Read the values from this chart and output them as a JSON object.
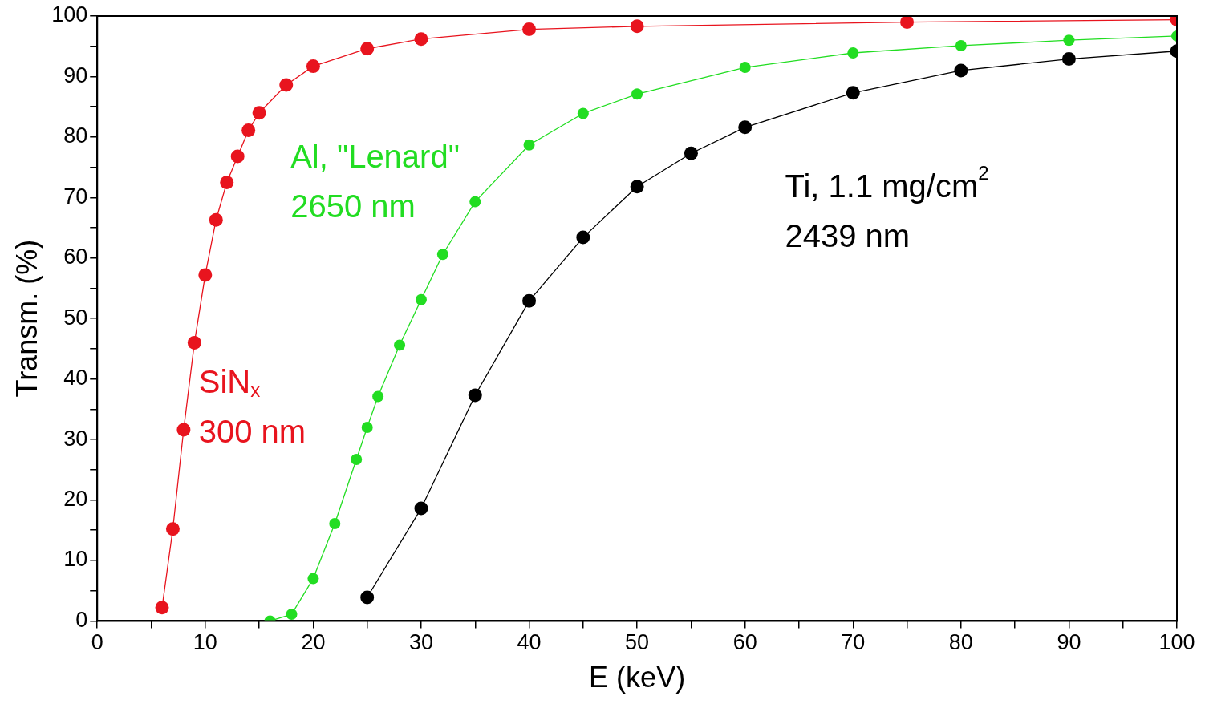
{
  "chart_data": {
    "type": "line",
    "xlabel": "E (keV)",
    "ylabel": "Transm. (%)",
    "xlim": [
      0,
      100
    ],
    "ylim": [
      0,
      100
    ],
    "xticks": [
      0,
      {
        "value": 5,
        "label": null
      },
      10,
      {
        "value": 15,
        "label": null
      },
      20,
      {
        "value": 25,
        "label": null
      },
      30,
      {
        "value": 35,
        "label": null
      },
      40,
      {
        "value": 45,
        "label": null
      },
      50,
      {
        "value": 55,
        "label": null
      },
      60,
      {
        "value": 65,
        "label": null
      },
      70,
      {
        "value": 75,
        "label": null
      },
      80,
      {
        "value": 85,
        "label": null
      },
      90,
      {
        "value": 95,
        "label": null
      },
      100
    ],
    "yticks": [
      0,
      {
        "value": 5,
        "label": null
      },
      10,
      {
        "value": 15,
        "label": null
      },
      20,
      {
        "value": 25,
        "label": null
      },
      30,
      {
        "value": 35,
        "label": null
      },
      40,
      {
        "value": 45,
        "label": null
      },
      50,
      {
        "value": 55,
        "label": null
      },
      60,
      {
        "value": 65,
        "label": null
      },
      70,
      {
        "value": 75,
        "label": null
      },
      80,
      {
        "value": 85,
        "label": null
      },
      90,
      {
        "value": 95,
        "label": null
      },
      100
    ],
    "grid": false,
    "legend": false,
    "marker": "circle",
    "line_style": "solid",
    "series": [
      {
        "color": "#e8141e",
        "x": [
          6,
          7,
          8,
          9,
          10,
          11,
          12,
          13,
          14,
          15,
          17.5,
          20,
          25,
          30,
          40,
          50,
          75,
          100
        ],
        "values": [
          2.2,
          15.2,
          31.6,
          46,
          57.2,
          66.3,
          72.5,
          76.8,
          81.1,
          84,
          88.6,
          91.7,
          94.6,
          96.2,
          97.8,
          98.3,
          99,
          99.4
        ]
      },
      {
        "color": "#22dd22",
        "x": [
          16,
          18,
          20,
          22,
          24,
          25,
          26,
          28,
          30,
          32,
          35,
          40,
          45,
          50,
          60,
          70,
          80,
          90,
          100
        ],
        "values": [
          0,
          1.1,
          7,
          16.1,
          26.7,
          32,
          37.1,
          45.6,
          53.1,
          60.6,
          69.3,
          78.7,
          83.9,
          87.1,
          91.5,
          93.9,
          95.1,
          96,
          96.7
        ]
      },
      {
        "color": "#000000",
        "x": [
          25,
          30,
          35,
          40,
          45,
          50,
          55,
          60,
          70,
          80,
          90,
          100
        ],
        "values": [
          3.9,
          18.6,
          37.3,
          52.9,
          63.4,
          71.8,
          77.3,
          81.6,
          87.3,
          91,
          92.9,
          94.2
        ]
      }
    ],
    "annotations": [
      "SiN$_{x}$\n300 nm",
      "Al, \"Lenard\"\n2650 nm",
      "Ti, 1.1 mg/cm$^{2}$\n2439 nm"
    ]
  }
}
